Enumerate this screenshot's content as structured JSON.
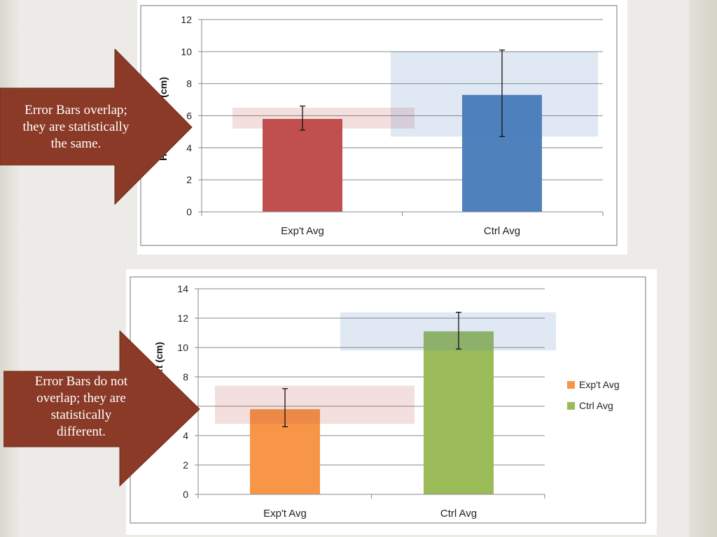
{
  "slide": {
    "colors": {
      "background": "#ecebe7",
      "arrow_fill": "#8b3a27",
      "arrow_text": "#ffffff"
    }
  },
  "callouts": [
    {
      "text_lines": [
        "Error Bars overlap;",
        "they are statistically",
        "the same."
      ]
    },
    {
      "text_lines": [
        "Error Bars do not",
        "overlap; they are",
        "statistically",
        "different."
      ]
    }
  ],
  "chart_data": [
    {
      "type": "bar",
      "categories": [
        "Exp't Avg",
        "Ctrl Avg"
      ],
      "values": [
        5.8,
        7.3
      ],
      "error_low": [
        5.1,
        4.7
      ],
      "error_high": [
        6.6,
        10.1
      ],
      "bar_colors": [
        "#c0504d",
        "#4f81bd"
      ],
      "overlap_bands": [
        {
          "low": 5.2,
          "high": 6.5,
          "color": "#c0504d"
        },
        {
          "low": 4.7,
          "high": 10.0,
          "color": "#4f81bd"
        }
      ],
      "ylabel": "Heig… …hes (cm)",
      "ylim": [
        0,
        12
      ],
      "yticks": [
        0,
        2,
        4,
        6,
        8,
        10,
        12
      ],
      "grid": true,
      "legend": "none"
    },
    {
      "type": "bar",
      "categories": [
        "Exp't Avg",
        "Ctrl Avg"
      ],
      "values": [
        5.8,
        11.1
      ],
      "error_low": [
        4.6,
        9.9
      ],
      "error_high": [
        7.2,
        12.4
      ],
      "bar_colors": [
        "#f79646",
        "#9bbb59"
      ],
      "overlap_bands": [
        {
          "low": 4.8,
          "high": 7.4,
          "color": "#c0504d"
        },
        {
          "low": 9.8,
          "high": 12.4,
          "color": "#4f81bd"
        }
      ],
      "ylabel": "…t (cm)",
      "ylim": [
        0,
        14
      ],
      "yticks": [
        0,
        2,
        4,
        6,
        8,
        10,
        12,
        14
      ],
      "grid": true,
      "legend": "right",
      "legend_entries": [
        "Exp't Avg",
        "Ctrl Avg"
      ]
    }
  ]
}
